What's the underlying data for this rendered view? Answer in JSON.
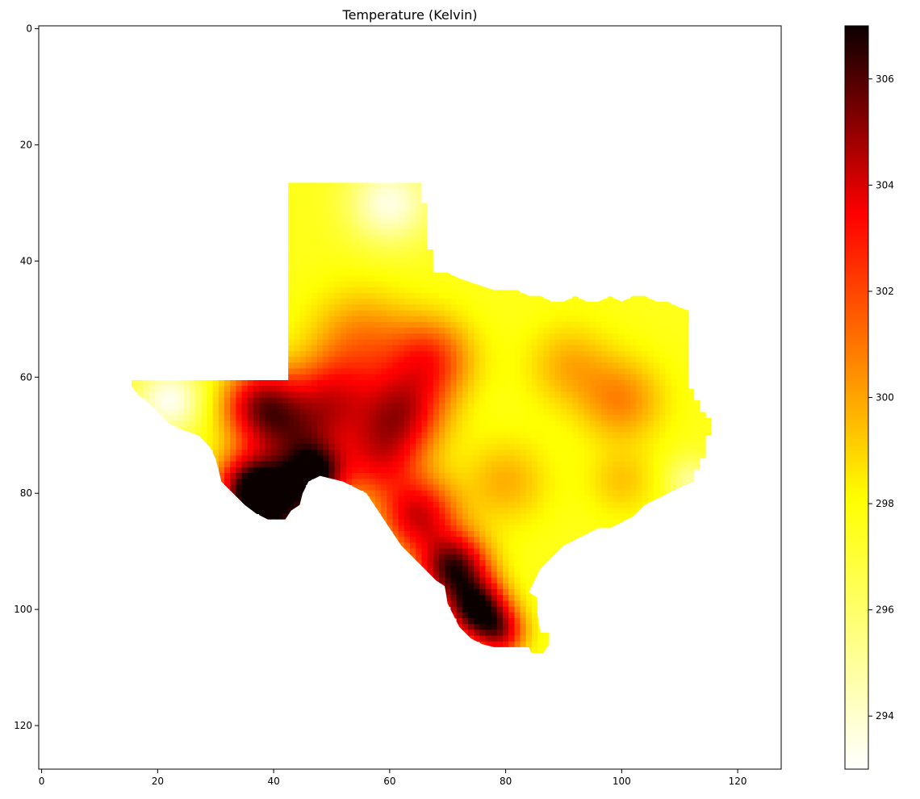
{
  "chart_data": {
    "type": "heatmap",
    "title": "Temperature (Kelvin)",
    "xlabel": "",
    "ylabel": "",
    "colormap": "hot_r",
    "background_color": "#ffffff",
    "grid": false,
    "image_extent": {
      "xlim": [
        -0.5,
        127.5
      ],
      "ylim": [
        127.5,
        -0.5
      ]
    },
    "x_ticks": [
      0,
      20,
      40,
      60,
      80,
      100,
      120
    ],
    "y_ticks": [
      0,
      20,
      40,
      60,
      80,
      100,
      120
    ],
    "colorbar": {
      "range": [
        293,
        307
      ],
      "ticks": [
        294,
        296,
        298,
        300,
        302,
        304,
        306
      ],
      "placement": "right"
    },
    "region_outline": {
      "description_units": "grid cells (column, row)",
      "points": [
        [
          42.5,
          26.5
        ],
        [
          65.5,
          26.5
        ],
        [
          65.5,
          30
        ],
        [
          66.5,
          30
        ],
        [
          66.5,
          38
        ],
        [
          67.5,
          38
        ],
        [
          67.5,
          42
        ],
        [
          70,
          42
        ],
        [
          72,
          43
        ],
        [
          75,
          44
        ],
        [
          78,
          45
        ],
        [
          80,
          45
        ],
        [
          82,
          45
        ],
        [
          84,
          46
        ],
        [
          86,
          46
        ],
        [
          88,
          47
        ],
        [
          90,
          47
        ],
        [
          92,
          46
        ],
        [
          94,
          47
        ],
        [
          96,
          47
        ],
        [
          98,
          46
        ],
        [
          100,
          47
        ],
        [
          102,
          46
        ],
        [
          104,
          46
        ],
        [
          106,
          47
        ],
        [
          108,
          47
        ],
        [
          110,
          48
        ],
        [
          111.5,
          48.5
        ],
        [
          111.5,
          62
        ],
        [
          112.5,
          62
        ],
        [
          112.5,
          64
        ],
        [
          113.5,
          64
        ],
        [
          113.5,
          66
        ],
        [
          114.5,
          66
        ],
        [
          114.5,
          67
        ],
        [
          115.5,
          67
        ],
        [
          115.5,
          70
        ],
        [
          114.5,
          70
        ],
        [
          114.5,
          74
        ],
        [
          113.5,
          74
        ],
        [
          113.5,
          76
        ],
        [
          112.5,
          76
        ],
        [
          112.5,
          78
        ],
        [
          110,
          79
        ],
        [
          108,
          80
        ],
        [
          106,
          81
        ],
        [
          104,
          82
        ],
        [
          102,
          84
        ],
        [
          100,
          85
        ],
        [
          98,
          86
        ],
        [
          96,
          86
        ],
        [
          94,
          87
        ],
        [
          92,
          88
        ],
        [
          90,
          89
        ],
        [
          88,
          91
        ],
        [
          86,
          93
        ],
        [
          85,
          95
        ],
        [
          84,
          97
        ],
        [
          85.5,
          98
        ],
        [
          85.5,
          101
        ],
        [
          86,
          104
        ],
        [
          87.5,
          104
        ],
        [
          87.5,
          106
        ],
        [
          86.5,
          107.5
        ],
        [
          84.5,
          107.5
        ],
        [
          84,
          106.5
        ],
        [
          78,
          106.5
        ],
        [
          76,
          106
        ],
        [
          74,
          105
        ],
        [
          72,
          103
        ],
        [
          71,
          101
        ],
        [
          70,
          99
        ],
        [
          69.5,
          96
        ],
        [
          68,
          95
        ],
        [
          66,
          93
        ],
        [
          64,
          91
        ],
        [
          62,
          89
        ],
        [
          60,
          86
        ],
        [
          58,
          83
        ],
        [
          56,
          80
        ],
        [
          54,
          79
        ],
        [
          52,
          78
        ],
        [
          50,
          77.5
        ],
        [
          48,
          77
        ],
        [
          46,
          78
        ],
        [
          45,
          80
        ],
        [
          44.5,
          82
        ],
        [
          43,
          83
        ],
        [
          42,
          84.5
        ],
        [
          39,
          84.5
        ],
        [
          37,
          83.5
        ],
        [
          35,
          82
        ],
        [
          33,
          80
        ],
        [
          31,
          78
        ],
        [
          30.5,
          76
        ],
        [
          30,
          74
        ],
        [
          29,
          72
        ],
        [
          27,
          70
        ],
        [
          24,
          69
        ],
        [
          22,
          68
        ],
        [
          20,
          66
        ],
        [
          18,
          64
        ],
        [
          16.5,
          63
        ],
        [
          15.5,
          61.5
        ],
        [
          15.5,
          60.5
        ],
        [
          42.5,
          60.5
        ]
      ]
    },
    "field": {
      "description": "Estimated temperature field in Kelvin over grid cells (column, row); value = base + sum of Gaussian anomalies",
      "base_value": 296.2,
      "anomalies": [
        {
          "cx": 40,
          "cy": 82,
          "amplitude": 10.5,
          "spread": 4
        },
        {
          "cx": 36,
          "cy": 79,
          "amplitude": 8.5,
          "spread": 4
        },
        {
          "cx": 47,
          "cy": 77,
          "amplitude": 9.0,
          "spread": 3.5
        },
        {
          "cx": 38,
          "cy": 65,
          "amplitude": 7.5,
          "spread": 4.5
        },
        {
          "cx": 44,
          "cy": 71,
          "amplitude": 5.5,
          "spread": 5
        },
        {
          "cx": 50,
          "cy": 64,
          "amplitude": 5.0,
          "spread": 5
        },
        {
          "cx": 58,
          "cy": 74,
          "amplitude": 5.0,
          "spread": 5
        },
        {
          "cx": 62,
          "cy": 66,
          "amplitude": 6.0,
          "spread": 5
        },
        {
          "cx": 67,
          "cy": 57,
          "amplitude": 4.5,
          "spread": 5
        },
        {
          "cx": 55,
          "cy": 54,
          "amplitude": 3.0,
          "spread": 6
        },
        {
          "cx": 65,
          "cy": 84,
          "amplitude": 6.5,
          "spread": 4.5
        },
        {
          "cx": 71,
          "cy": 93,
          "amplitude": 9.5,
          "spread": 4
        },
        {
          "cx": 75,
          "cy": 100,
          "amplitude": 10.0,
          "spread": 3.5
        },
        {
          "cx": 79,
          "cy": 104,
          "amplitude": 6.0,
          "spread": 3
        },
        {
          "cx": 80,
          "cy": 78,
          "amplitude": 2.0,
          "spread": 5
        },
        {
          "cx": 100,
          "cy": 64,
          "amplitude": 2.8,
          "spread": 5
        },
        {
          "cx": 91,
          "cy": 58,
          "amplitude": 2.0,
          "spread": 5
        },
        {
          "cx": 100,
          "cy": 78,
          "amplitude": 1.5,
          "spread": 4
        },
        {
          "cx": 22,
          "cy": 64,
          "amplitude": -3.0,
          "spread": 4
        },
        {
          "cx": 60,
          "cy": 30,
          "amplitude": -2.8,
          "spread": 5
        },
        {
          "cx": 112,
          "cy": 78,
          "amplitude": -1.8,
          "spread": 3
        }
      ]
    }
  }
}
